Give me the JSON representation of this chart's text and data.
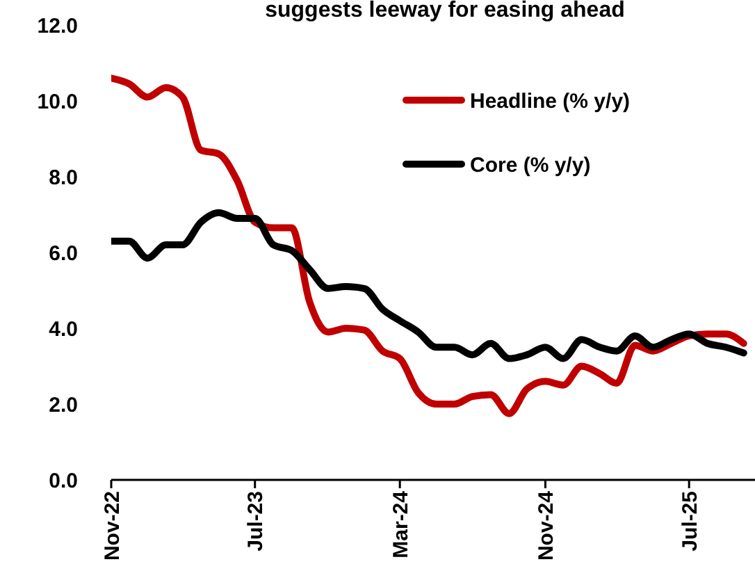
{
  "chart_data": {
    "type": "line",
    "title": "suggests leeway for easing ahead",
    "x": [
      "2022-11",
      "2022-12",
      "2023-01",
      "2023-02",
      "2023-03",
      "2023-04",
      "2023-05",
      "2023-06",
      "2023-07",
      "2023-08",
      "2023-09",
      "2023-10",
      "2023-11",
      "2023-12",
      "2024-01",
      "2024-02",
      "2024-03",
      "2024-04",
      "2024-05",
      "2024-06",
      "2024-07",
      "2024-08",
      "2024-09",
      "2024-10",
      "2024-11",
      "2024-12",
      "2025-01",
      "2025-02",
      "2025-03",
      "2025-04",
      "2025-05",
      "2025-06",
      "2025-07",
      "2025-08",
      "2025-09",
      "2025-10"
    ],
    "series": [
      {
        "name": "Headline (% y/y)",
        "color": "#c00000",
        "values": [
          10.6,
          10.45,
          10.1,
          10.35,
          10.1,
          8.7,
          8.6,
          7.9,
          6.8,
          6.65,
          6.65,
          4.7,
          3.9,
          4.0,
          3.95,
          3.4,
          3.2,
          2.3,
          2.0,
          2.0,
          2.2,
          2.25,
          1.75,
          2.4,
          2.6,
          2.5,
          3.0,
          2.8,
          2.55,
          3.55,
          3.4,
          3.6,
          3.8,
          3.85,
          3.85,
          3.6
        ]
      },
      {
        "name": "Core (% y/y)",
        "color": "#000000",
        "values": [
          6.3,
          6.3,
          5.85,
          6.2,
          6.2,
          6.8,
          7.05,
          6.9,
          6.9,
          6.2,
          6.05,
          5.55,
          5.05,
          5.1,
          5.05,
          4.5,
          4.2,
          3.9,
          3.5,
          3.5,
          3.3,
          3.6,
          3.2,
          3.3,
          3.5,
          3.2,
          3.7,
          3.5,
          3.4,
          3.8,
          3.5,
          3.7,
          3.85,
          3.6,
          3.5,
          3.35
        ]
      }
    ],
    "xlim": [
      "2022-11",
      "2025-10-20"
    ],
    "xticks": [
      {
        "value": "2022-11",
        "label": "Nov-22"
      },
      {
        "value": "2023-07",
        "label": "Jul-23"
      },
      {
        "value": "2024-03",
        "label": "Mar-24"
      },
      {
        "value": "2024-11",
        "label": "Nov-24"
      },
      {
        "value": "2025-07",
        "label": "Jul-25"
      }
    ],
    "ylim": [
      0,
      12
    ],
    "yticks": [
      {
        "value": 0,
        "label": "0.0"
      },
      {
        "value": 2,
        "label": "2.0"
      },
      {
        "value": 4,
        "label": "4.0"
      },
      {
        "value": 6,
        "label": "6.0"
      },
      {
        "value": 8,
        "label": "8.0"
      },
      {
        "value": 10,
        "label": "10.0"
      },
      {
        "value": 12,
        "label": "12.0"
      }
    ],
    "grid": false,
    "legend": "top right",
    "marker": "none",
    "line_style": "solid"
  }
}
